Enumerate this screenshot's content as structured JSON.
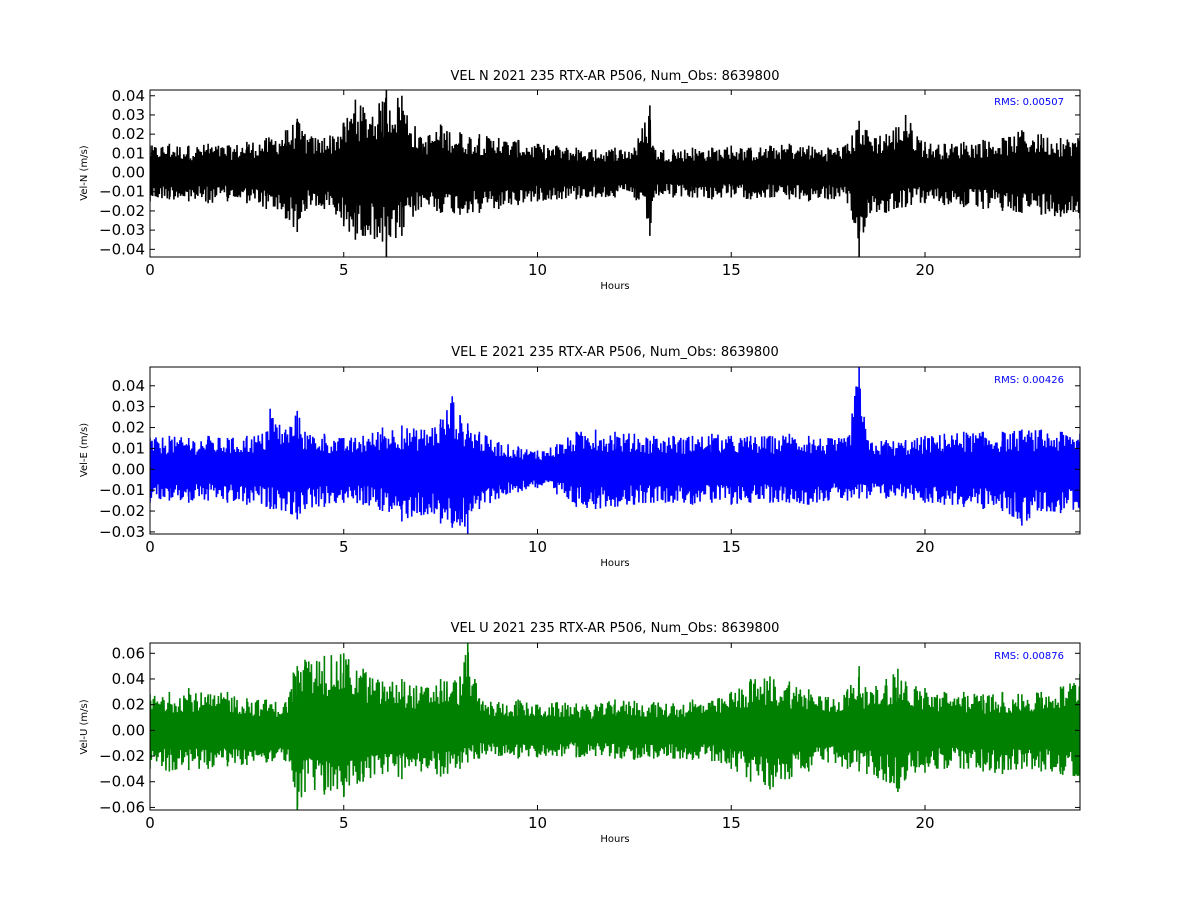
{
  "figure": {
    "background": "#ffffff"
  },
  "chart_data": [
    {
      "type": "line",
      "title": "VEL N 2021 235 RTX-AR  P506, Num_Obs: 8639800",
      "xlabel": "Hours",
      "ylabel": "Vel-N (m/s)",
      "xlim": [
        0,
        24
      ],
      "ylim": [
        -0.044,
        0.043
      ],
      "xticks": [
        0,
        5,
        10,
        15,
        20
      ],
      "xtick_labels": [
        "0",
        "5",
        "10",
        "15",
        "20"
      ],
      "yticks": [
        -0.04,
        -0.03,
        -0.02,
        -0.01,
        0.0,
        0.01,
        0.02,
        0.03,
        0.04
      ],
      "ytick_labels": [
        "−0.04",
        "−0.03",
        "−0.02",
        "−0.01",
        "0.00",
        "0.01",
        "0.02",
        "0.03",
        "0.04"
      ],
      "grid": false,
      "annotation": "RMS:  0.00507",
      "annotation_color": "#0000ff",
      "series": [
        {
          "color": "#000000",
          "x": [
            0.0,
            0.5,
            1.0,
            1.5,
            2.0,
            2.5,
            3.0,
            3.5,
            3.8,
            4.0,
            4.5,
            5.0,
            5.3,
            5.5,
            6.0,
            6.1,
            6.5,
            7.0,
            7.5,
            8.0,
            8.5,
            9.0,
            9.5,
            10.0,
            10.5,
            11.0,
            11.5,
            12.0,
            12.5,
            12.9,
            13.0,
            13.5,
            14.0,
            14.5,
            15.0,
            15.5,
            16.0,
            16.5,
            17.0,
            17.5,
            18.0,
            18.3,
            18.5,
            19.0,
            19.5,
            20.0,
            20.5,
            21.0,
            21.5,
            22.0,
            22.5,
            23.0,
            23.5,
            24.0
          ],
          "envelope_max": [
            0.014,
            0.015,
            0.014,
            0.015,
            0.014,
            0.016,
            0.018,
            0.022,
            0.028,
            0.02,
            0.018,
            0.026,
            0.038,
            0.034,
            0.037,
            0.043,
            0.04,
            0.018,
            0.025,
            0.021,
            0.02,
            0.018,
            0.017,
            0.015,
            0.014,
            0.013,
            0.012,
            0.013,
            0.013,
            0.035,
            0.013,
            0.012,
            0.013,
            0.013,
            0.014,
            0.013,
            0.014,
            0.015,
            0.014,
            0.013,
            0.015,
            0.027,
            0.022,
            0.02,
            0.03,
            0.016,
            0.015,
            0.016,
            0.017,
            0.018,
            0.022,
            0.02,
            0.018,
            0.019
          ],
          "envelope_min": [
            -0.015,
            -0.014,
            -0.015,
            -0.016,
            -0.015,
            -0.016,
            -0.019,
            -0.024,
            -0.031,
            -0.02,
            -0.019,
            -0.028,
            -0.035,
            -0.033,
            -0.036,
            -0.044,
            -0.033,
            -0.018,
            -0.021,
            -0.022,
            -0.021,
            -0.019,
            -0.017,
            -0.015,
            -0.014,
            -0.014,
            -0.013,
            -0.013,
            -0.013,
            -0.033,
            -0.013,
            -0.013,
            -0.013,
            -0.014,
            -0.013,
            -0.014,
            -0.013,
            -0.014,
            -0.015,
            -0.014,
            -0.016,
            -0.044,
            -0.023,
            -0.021,
            -0.018,
            -0.016,
            -0.017,
            -0.018,
            -0.019,
            -0.02,
            -0.021,
            -0.022,
            -0.023,
            -0.024
          ]
        }
      ]
    },
    {
      "type": "line",
      "title": "VEL E 2021 235 RTX-AR  P506, Num_Obs: 8639800",
      "xlabel": "Hours",
      "ylabel": "Vel-E (m/s)",
      "xlim": [
        0,
        24
      ],
      "ylim": [
        -0.031,
        0.049
      ],
      "xticks": [
        0,
        5,
        10,
        15,
        20
      ],
      "xtick_labels": [
        "0",
        "5",
        "10",
        "15",
        "20"
      ],
      "yticks": [
        -0.03,
        -0.02,
        -0.01,
        0.0,
        0.01,
        0.02,
        0.03,
        0.04
      ],
      "ytick_labels": [
        "−0.03",
        "−0.02",
        "−0.01",
        "0.00",
        "0.01",
        "0.02",
        "0.03",
        "0.04"
      ],
      "grid": false,
      "annotation": "RMS:  0.00426",
      "annotation_color": "#0000ff",
      "series": [
        {
          "color": "#0000ff",
          "x": [
            0.0,
            0.5,
            1.0,
            1.5,
            2.0,
            2.5,
            3.0,
            3.1,
            3.5,
            3.8,
            4.0,
            4.5,
            5.0,
            5.5,
            6.0,
            6.5,
            7.0,
            7.5,
            7.8,
            8.0,
            8.2,
            8.5,
            9.0,
            9.5,
            10.0,
            10.5,
            11.0,
            11.5,
            12.0,
            12.5,
            13.0,
            13.5,
            14.0,
            14.5,
            15.0,
            15.5,
            16.0,
            16.5,
            17.0,
            17.5,
            18.0,
            18.3,
            18.5,
            19.0,
            19.5,
            20.0,
            20.5,
            21.0,
            21.5,
            22.0,
            22.5,
            23.0,
            23.5,
            24.0
          ],
          "envelope_max": [
            0.015,
            0.016,
            0.015,
            0.016,
            0.015,
            0.016,
            0.018,
            0.029,
            0.019,
            0.028,
            0.018,
            0.017,
            0.015,
            0.016,
            0.02,
            0.021,
            0.019,
            0.024,
            0.035,
            0.026,
            0.022,
            0.018,
            0.013,
            0.011,
            0.009,
            0.012,
            0.018,
            0.019,
            0.018,
            0.017,
            0.016,
            0.016,
            0.016,
            0.017,
            0.016,
            0.016,
            0.016,
            0.017,
            0.016,
            0.015,
            0.015,
            0.049,
            0.014,
            0.014,
            0.014,
            0.016,
            0.017,
            0.018,
            0.018,
            0.018,
            0.019,
            0.019,
            0.018,
            0.017
          ],
          "envelope_min": [
            -0.016,
            -0.015,
            -0.016,
            -0.015,
            -0.016,
            -0.017,
            -0.018,
            -0.019,
            -0.02,
            -0.024,
            -0.019,
            -0.018,
            -0.016,
            -0.017,
            -0.02,
            -0.025,
            -0.022,
            -0.026,
            -0.028,
            -0.027,
            -0.031,
            -0.019,
            -0.014,
            -0.011,
            -0.009,
            -0.012,
            -0.018,
            -0.019,
            -0.018,
            -0.017,
            -0.016,
            -0.016,
            -0.017,
            -0.016,
            -0.017,
            -0.016,
            -0.016,
            -0.016,
            -0.017,
            -0.015,
            -0.015,
            -0.014,
            -0.014,
            -0.014,
            -0.014,
            -0.016,
            -0.017,
            -0.018,
            -0.019,
            -0.02,
            -0.027,
            -0.02,
            -0.021,
            -0.019
          ]
        }
      ]
    },
    {
      "type": "line",
      "title": "VEL U 2021 235 RTX-AR  P506, Num_Obs: 8639800",
      "xlabel": "Hours",
      "ylabel": "Vel-U (m/s)",
      "xlim": [
        0,
        24
      ],
      "ylim": [
        -0.062,
        0.068
      ],
      "xticks": [
        0,
        5,
        10,
        15,
        20
      ],
      "xtick_labels": [
        "0",
        "5",
        "10",
        "15",
        "20"
      ],
      "yticks": [
        -0.06,
        -0.04,
        -0.02,
        0.0,
        0.02,
        0.04,
        0.06
      ],
      "ytick_labels": [
        "−0.06",
        "−0.04",
        "−0.02",
        "0.00",
        "0.02",
        "0.04",
        "0.06"
      ],
      "grid": false,
      "annotation": "RMS:  0.00876",
      "annotation_color": "#0000ff",
      "series": [
        {
          "color": "#008000",
          "x": [
            0.0,
            0.5,
            1.0,
            1.5,
            2.0,
            2.5,
            3.0,
            3.5,
            3.7,
            3.8,
            4.0,
            4.5,
            5.0,
            5.5,
            6.0,
            6.5,
            7.0,
            7.5,
            8.0,
            8.2,
            8.5,
            9.0,
            9.5,
            10.0,
            10.5,
            11.0,
            11.5,
            12.0,
            12.5,
            13.0,
            13.5,
            14.0,
            14.5,
            15.0,
            15.5,
            16.0,
            16.5,
            17.0,
            17.5,
            18.0,
            18.3,
            18.5,
            19.0,
            19.3,
            19.5,
            20.0,
            20.5,
            21.0,
            21.5,
            22.0,
            22.5,
            23.0,
            23.5,
            24.0
          ],
          "envelope_max": [
            0.028,
            0.03,
            0.033,
            0.028,
            0.03,
            0.025,
            0.024,
            0.022,
            0.045,
            0.05,
            0.055,
            0.058,
            0.06,
            0.048,
            0.038,
            0.04,
            0.034,
            0.04,
            0.042,
            0.068,
            0.025,
            0.022,
            0.024,
            0.02,
            0.022,
            0.021,
            0.02,
            0.024,
            0.023,
            0.022,
            0.021,
            0.024,
            0.023,
            0.03,
            0.04,
            0.042,
            0.038,
            0.032,
            0.026,
            0.032,
            0.05,
            0.03,
            0.04,
            0.048,
            0.038,
            0.033,
            0.03,
            0.03,
            0.028,
            0.03,
            0.028,
            0.03,
            0.034,
            0.044
          ],
          "envelope_min": [
            -0.03,
            -0.032,
            -0.031,
            -0.03,
            -0.028,
            -0.027,
            -0.025,
            -0.024,
            -0.04,
            -0.062,
            -0.048,
            -0.05,
            -0.052,
            -0.04,
            -0.034,
            -0.038,
            -0.032,
            -0.036,
            -0.03,
            -0.025,
            -0.022,
            -0.02,
            -0.022,
            -0.021,
            -0.02,
            -0.021,
            -0.02,
            -0.022,
            -0.023,
            -0.022,
            -0.022,
            -0.023,
            -0.024,
            -0.03,
            -0.04,
            -0.046,
            -0.038,
            -0.032,
            -0.025,
            -0.03,
            -0.032,
            -0.034,
            -0.04,
            -0.048,
            -0.038,
            -0.033,
            -0.03,
            -0.03,
            -0.032,
            -0.034,
            -0.03,
            -0.032,
            -0.034,
            -0.04
          ]
        }
      ]
    }
  ]
}
